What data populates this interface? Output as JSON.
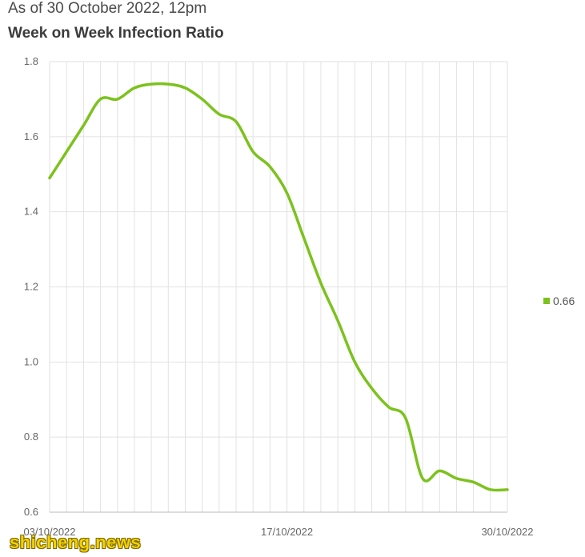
{
  "header": {
    "subtitle": "As of 30 October 2022, 12pm",
    "title": "Week on Week Infection Ratio"
  },
  "watermark": "shicheng.news",
  "colors": {
    "line": "#7cc21e",
    "grid": "#e2e2e2",
    "axis": "#bbbbbb"
  },
  "chart_data": {
    "type": "line",
    "title": "Week on Week Infection Ratio",
    "subtitle": "As of 30 October 2022, 12pm",
    "xlabel": "",
    "ylabel": "",
    "x_ticks_labeled": [
      "03/10/2022",
      "17/10/2022",
      "30/10/2022"
    ],
    "y_ticks": [
      "0.6",
      "0.8",
      "1.0",
      "1.2",
      "1.4",
      "1.6",
      "1.8"
    ],
    "ylim": [
      0.6,
      1.8
    ],
    "grid": true,
    "legend_position": "right",
    "series": [
      {
        "name": "0.66",
        "color": "#7cc21e",
        "x": [
          "03/10/2022",
          "04/10/2022",
          "05/10/2022",
          "06/10/2022",
          "07/10/2022",
          "08/10/2022",
          "09/10/2022",
          "10/10/2022",
          "11/10/2022",
          "12/10/2022",
          "13/10/2022",
          "14/10/2022",
          "15/10/2022",
          "16/10/2022",
          "17/10/2022",
          "18/10/2022",
          "19/10/2022",
          "20/10/2022",
          "21/10/2022",
          "22/10/2022",
          "23/10/2022",
          "24/10/2022",
          "25/10/2022",
          "26/10/2022",
          "27/10/2022",
          "28/10/2022",
          "29/10/2022",
          "30/10/2022"
        ],
        "values": [
          1.49,
          1.56,
          1.63,
          1.7,
          1.7,
          1.73,
          1.74,
          1.74,
          1.73,
          1.7,
          1.66,
          1.64,
          1.56,
          1.52,
          1.45,
          1.33,
          1.21,
          1.11,
          1.0,
          0.93,
          0.88,
          0.85,
          0.69,
          0.71,
          0.69,
          0.68,
          0.66,
          0.66
        ]
      }
    ]
  }
}
